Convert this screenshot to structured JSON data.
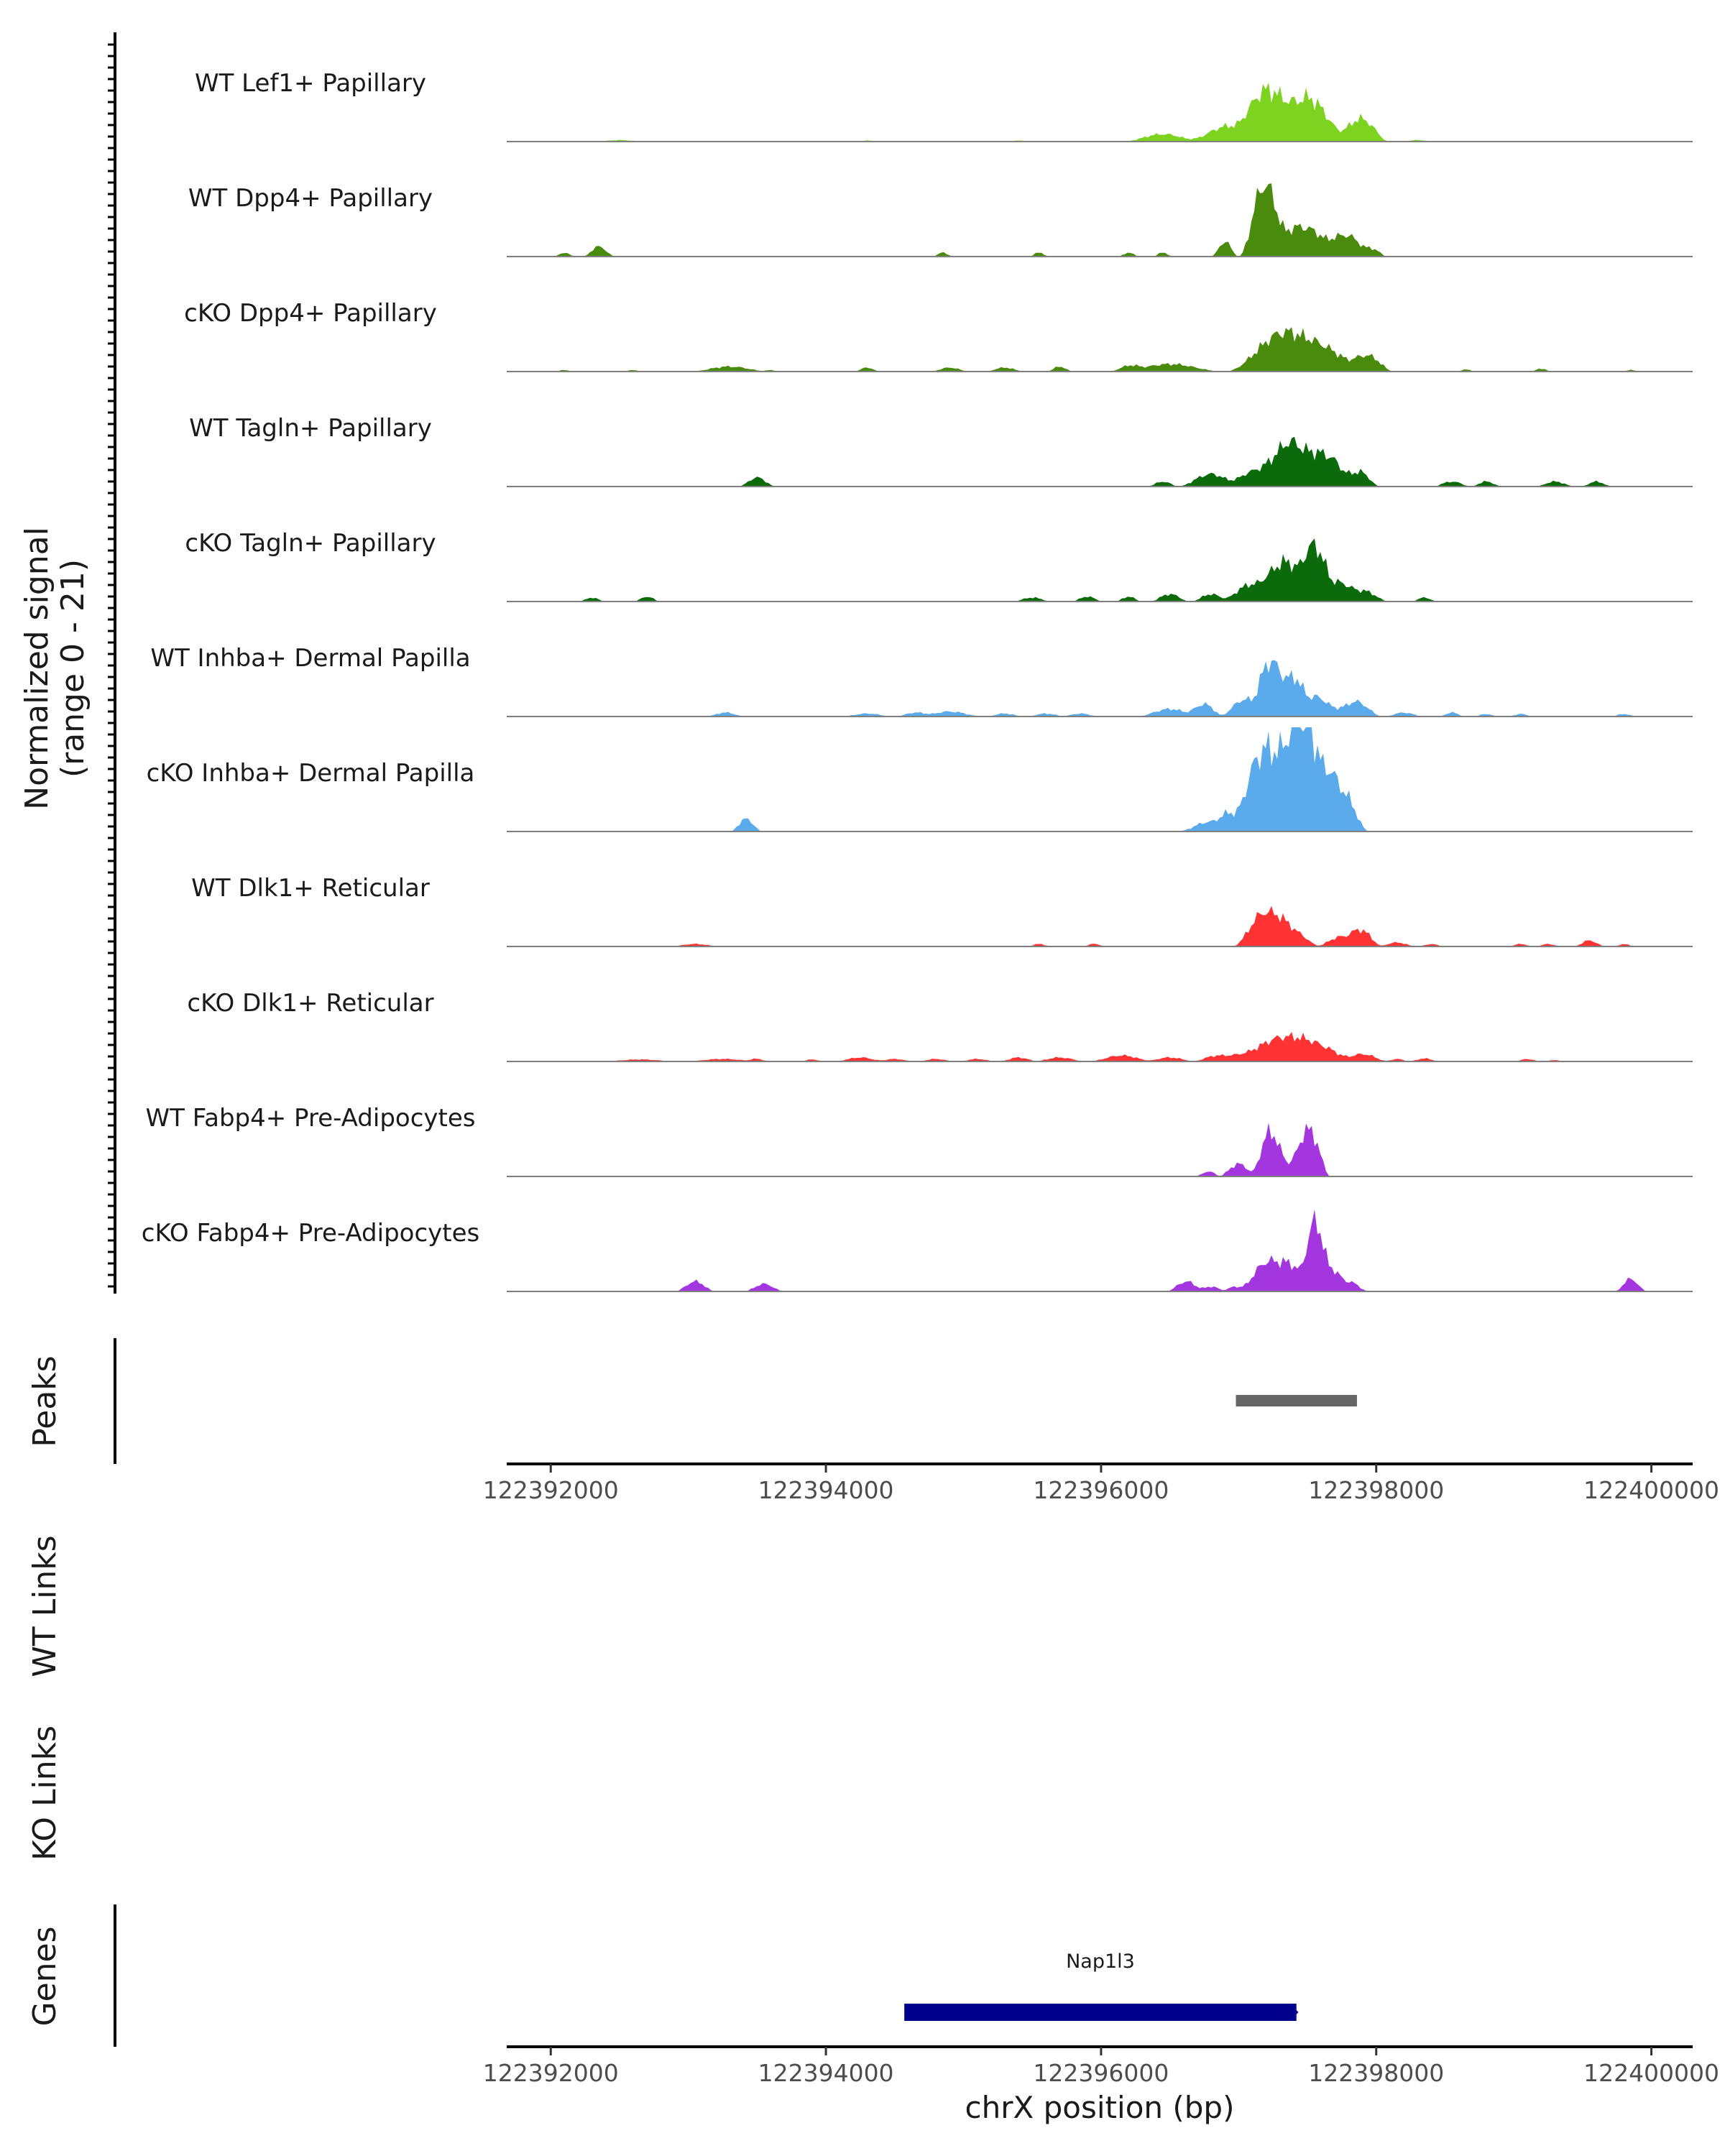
{
  "chart_data": {
    "type": "area",
    "chromosome": "chrX",
    "xlabel": "chrX position (bp)",
    "xlim": [
      122391680,
      122400300
    ],
    "x_ticks": [
      "122392000",
      "122394000",
      "122396000",
      "122398000",
      "122400000"
    ],
    "signal_axis": {
      "title_line1": "Normalized signal",
      "title_line2": "(range 0 - 21)",
      "ylim": [
        0,
        21
      ]
    },
    "tracks": [
      {
        "name": "WT Lef1+ Papillary",
        "color": "#7ED321",
        "peaks": [
          [
            122392500,
            0.3,
            200
          ],
          [
            122394300,
            0.2,
            150
          ],
          [
            122395400,
            0.2,
            150
          ],
          [
            122396450,
            1.5,
            300
          ],
          [
            122396900,
            2.5,
            300
          ],
          [
            122397200,
            8,
            250
          ],
          [
            122397500,
            6,
            280
          ],
          [
            122397900,
            4,
            200
          ],
          [
            122397400,
            3,
            700
          ],
          [
            122398300,
            0.3,
            150
          ]
        ]
      },
      {
        "name": "WT Dpp4+ Papillary",
        "color": "#4A8A0C",
        "peaks": [
          [
            122392100,
            0.8,
            80
          ],
          [
            122392350,
            2,
            120
          ],
          [
            122394850,
            0.8,
            80
          ],
          [
            122395550,
            0.8,
            80
          ],
          [
            122396200,
            0.8,
            80
          ],
          [
            122396450,
            0.8,
            80
          ],
          [
            122396900,
            3,
            100
          ],
          [
            122397180,
            13,
            180
          ],
          [
            122397450,
            6,
            400
          ],
          [
            122397800,
            4,
            200
          ],
          [
            122397980,
            1.5,
            100
          ]
        ]
      },
      {
        "name": "cKO Dpp4+ Papillary",
        "color": "#4A8A0C",
        "peaks": [
          [
            122392100,
            0.3,
            80
          ],
          [
            122392600,
            0.3,
            80
          ],
          [
            122393300,
            1,
            300
          ],
          [
            122393600,
            0.3,
            80
          ],
          [
            122394300,
            0.8,
            100
          ],
          [
            122394900,
            0.8,
            150
          ],
          [
            122395300,
            0.8,
            150
          ],
          [
            122395700,
            1,
            100
          ],
          [
            122396200,
            1,
            150
          ],
          [
            122396500,
            1.5,
            400
          ],
          [
            122397350,
            8,
            450
          ],
          [
            122397700,
            3,
            300
          ],
          [
            122397950,
            3,
            180
          ],
          [
            122398650,
            0.4,
            80
          ],
          [
            122399200,
            0.6,
            80
          ],
          [
            122399850,
            0.3,
            80
          ]
        ]
      },
      {
        "name": "WT Tagln+ Papillary",
        "color": "#0B6B0A",
        "peaks": [
          [
            122393500,
            1.8,
            140
          ],
          [
            122396450,
            1,
            120
          ],
          [
            122396800,
            2.5,
            250
          ],
          [
            122397100,
            3,
            200
          ],
          [
            122397380,
            9,
            300
          ],
          [
            122397650,
            6,
            220
          ],
          [
            122397880,
            3,
            150
          ],
          [
            122398550,
            1,
            150
          ],
          [
            122398800,
            1,
            120
          ],
          [
            122399300,
            1,
            150
          ],
          [
            122399600,
            1,
            120
          ]
        ]
      },
      {
        "name": "cKO Tagln+ Papillary",
        "color": "#0B6B0A",
        "peaks": [
          [
            122392300,
            0.8,
            100
          ],
          [
            122392700,
            1,
            100
          ],
          [
            122395500,
            0.8,
            150
          ],
          [
            122395900,
            1,
            120
          ],
          [
            122396200,
            1,
            100
          ],
          [
            122396500,
            1.5,
            150
          ],
          [
            122396800,
            1.5,
            150
          ],
          [
            122397100,
            3.5,
            250
          ],
          [
            122397350,
            8,
            250
          ],
          [
            122397550,
            10,
            150
          ],
          [
            122397700,
            4,
            200
          ],
          [
            122397900,
            2.2,
            200
          ],
          [
            122398350,
            0.8,
            100
          ]
        ]
      },
      {
        "name": "WT Inhba+ Dermal Papilla",
        "color": "#5BAAEB",
        "peaks": [
          [
            122393270,
            0.8,
            150
          ],
          [
            122394300,
            0.6,
            200
          ],
          [
            122394650,
            0.8,
            150
          ],
          [
            122394900,
            1,
            250
          ],
          [
            122395300,
            0.6,
            150
          ],
          [
            122395600,
            0.6,
            150
          ],
          [
            122395850,
            0.6,
            150
          ],
          [
            122396500,
            1.5,
            250
          ],
          [
            122396750,
            2.5,
            150
          ],
          [
            122397050,
            3.5,
            200
          ],
          [
            122397230,
            11,
            150
          ],
          [
            122397380,
            7,
            150
          ],
          [
            122397550,
            4,
            250
          ],
          [
            122397850,
            3,
            200
          ],
          [
            122398200,
            0.8,
            150
          ],
          [
            122398550,
            0.8,
            100
          ],
          [
            122398800,
            0.5,
            100
          ],
          [
            122399050,
            0.5,
            100
          ],
          [
            122399800,
            0.5,
            100
          ]
        ]
      },
      {
        "name": "cKO Inhba+ Dermal Papilla",
        "color": "#5BAAEB",
        "peaks": [
          [
            122393420,
            2.5,
            120
          ],
          [
            122396800,
            2,
            250
          ],
          [
            122396950,
            3,
            150
          ],
          [
            122397150,
            15,
            200
          ],
          [
            122397280,
            9,
            150
          ],
          [
            122397430,
            21,
            200
          ],
          [
            122397580,
            12,
            200
          ],
          [
            122397750,
            8,
            200
          ]
        ]
      },
      {
        "name": "WT Dlk1+ Reticular",
        "color": "#FF3333",
        "peaks": [
          [
            122393050,
            0.5,
            200
          ],
          [
            122395550,
            0.5,
            100
          ],
          [
            122395950,
            0.5,
            100
          ],
          [
            122397200,
            7,
            250
          ],
          [
            122397400,
            3,
            200
          ],
          [
            122397750,
            2,
            200
          ],
          [
            122397900,
            3,
            150
          ],
          [
            122398150,
            0.8,
            150
          ],
          [
            122398400,
            0.5,
            100
          ],
          [
            122399050,
            0.5,
            100
          ],
          [
            122399250,
            0.5,
            100
          ],
          [
            122399550,
            1.2,
            120
          ],
          [
            122399800,
            0.5,
            80
          ]
        ]
      },
      {
        "name": "cKO Dlk1+ Reticular",
        "color": "#FF3333",
        "peaks": [
          [
            122392650,
            0.4,
            300
          ],
          [
            122393250,
            0.5,
            300
          ],
          [
            122393500,
            0.5,
            100
          ],
          [
            122393900,
            0.4,
            100
          ],
          [
            122394250,
            0.8,
            200
          ],
          [
            122394500,
            0.5,
            150
          ],
          [
            122394800,
            0.5,
            150
          ],
          [
            122395100,
            0.5,
            150
          ],
          [
            122395400,
            0.8,
            150
          ],
          [
            122395700,
            0.8,
            200
          ],
          [
            122396150,
            1.2,
            250
          ],
          [
            122396500,
            0.8,
            200
          ],
          [
            122396850,
            1.2,
            200
          ],
          [
            122397100,
            2,
            250
          ],
          [
            122397350,
            5,
            300
          ],
          [
            122397600,
            3,
            250
          ],
          [
            122397900,
            1.5,
            200
          ],
          [
            122398150,
            0.5,
            100
          ],
          [
            122398350,
            0.6,
            120
          ],
          [
            122399100,
            0.5,
            100
          ],
          [
            122399300,
            0.3,
            80
          ]
        ]
      },
      {
        "name": "WT Fabp4+ Pre-Adipocytes",
        "color": "#A436E0",
        "peaks": [
          [
            122396780,
            1,
            100
          ],
          [
            122397000,
            2.5,
            150
          ],
          [
            122397230,
            9,
            150
          ],
          [
            122397400,
            3,
            150
          ],
          [
            122397520,
            9,
            150
          ]
        ]
      },
      {
        "name": "cKO Fabp4+ Pre-Adipocytes",
        "color": "#A436E0",
        "peaks": [
          [
            122393050,
            2,
            150
          ],
          [
            122393550,
            1.5,
            150
          ],
          [
            122396620,
            2,
            150
          ],
          [
            122396800,
            1,
            120
          ],
          [
            122396980,
            1,
            120
          ],
          [
            122397150,
            4,
            150
          ],
          [
            122397300,
            6,
            200
          ],
          [
            122397450,
            3,
            150
          ],
          [
            122397550,
            12,
            120
          ],
          [
            122397650,
            5,
            150
          ],
          [
            122397800,
            2,
            150
          ],
          [
            122399850,
            2.5,
            120
          ]
        ]
      }
    ],
    "peaks_track": {
      "title": "Peaks",
      "regions": [
        [
          122396980,
          122397860
        ]
      ],
      "color": "#666666"
    },
    "links_tracks": [
      {
        "title": "WT Links"
      },
      {
        "title": "KO Links"
      }
    ],
    "genes_track": {
      "title": "Genes",
      "genes": [
        {
          "name": "Nap1l3",
          "start": 122394570,
          "end": 122397420,
          "color": "#00008B"
        }
      ]
    }
  }
}
